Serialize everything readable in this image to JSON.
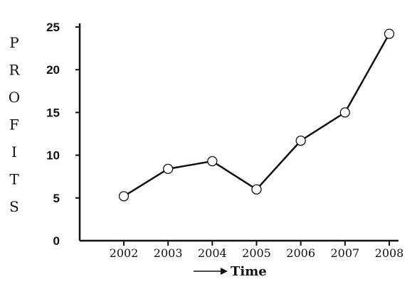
{
  "chart_data": {
    "type": "line",
    "xlabel": "Time",
    "ylabel": "PROFITS",
    "x": [
      "2002",
      "2003",
      "2004",
      "2005",
      "2006",
      "2007",
      "2008"
    ],
    "values": [
      5.2,
      8.4,
      9.3,
      6.0,
      11.7,
      15.0,
      24.2
    ],
    "yticks": [
      "0",
      "5",
      "10",
      "15",
      "20",
      "25"
    ],
    "ylim": [
      0,
      25
    ],
    "grid": false,
    "marker": "open-circle",
    "line_color": "#111111"
  }
}
